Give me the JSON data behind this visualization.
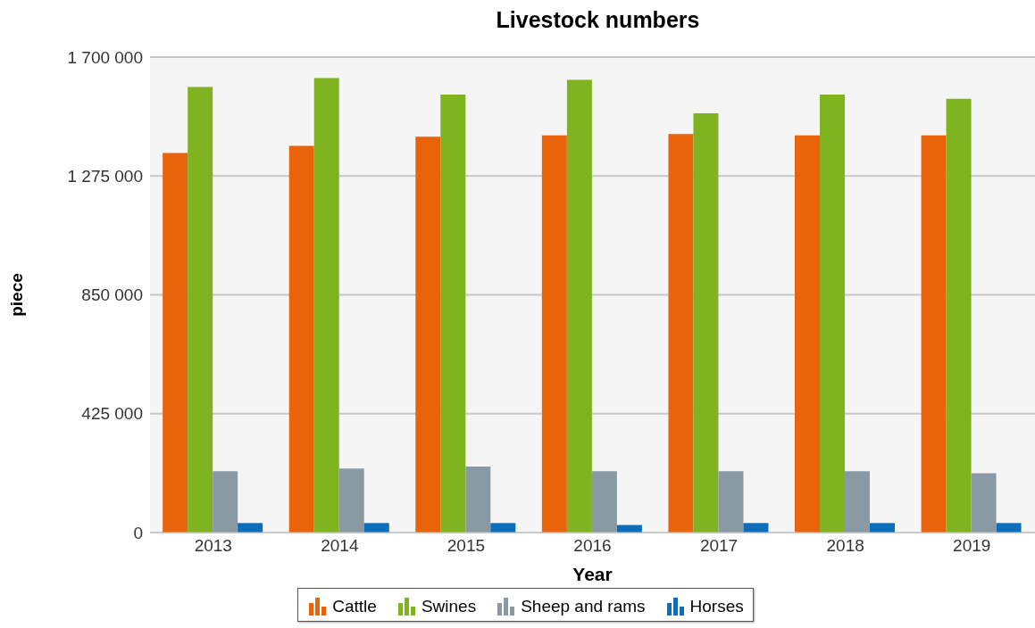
{
  "chart_data": {
    "type": "bar",
    "title": "Livestock numbers",
    "xlabel": "Year",
    "ylabel": "piece",
    "categories": [
      "2013",
      "2014",
      "2015",
      "2016",
      "2017",
      "2018",
      "2019"
    ],
    "series": [
      {
        "name": "Cattle",
        "color": "#e8630a",
        "values": [
          1357000,
          1383000,
          1415000,
          1420000,
          1425000,
          1420000,
          1420000
        ]
      },
      {
        "name": "Swines",
        "color": "#7fb320",
        "values": [
          1593000,
          1625000,
          1566000,
          1619000,
          1499000,
          1566000,
          1551000
        ]
      },
      {
        "name": "Sheep and rams",
        "color": "#8a9aa5",
        "values": [
          219000,
          229000,
          236000,
          219000,
          219000,
          219000,
          212000
        ]
      },
      {
        "name": "Horses",
        "color": "#0a6ebd",
        "values": [
          34000,
          34000,
          34000,
          27000,
          34000,
          34000,
          34000
        ]
      }
    ],
    "ylim": [
      0,
      1700000
    ],
    "yticks": [
      0,
      {
        "value": 425000,
        "label": "425 000"
      },
      {
        "value": 850000,
        "label": "850 000"
      },
      {
        "value": 1275000,
        "label": "1 275 000"
      },
      {
        "value": 1700000,
        "label": "1 700 000"
      }
    ],
    "grid": "y",
    "legend": "bottom"
  }
}
